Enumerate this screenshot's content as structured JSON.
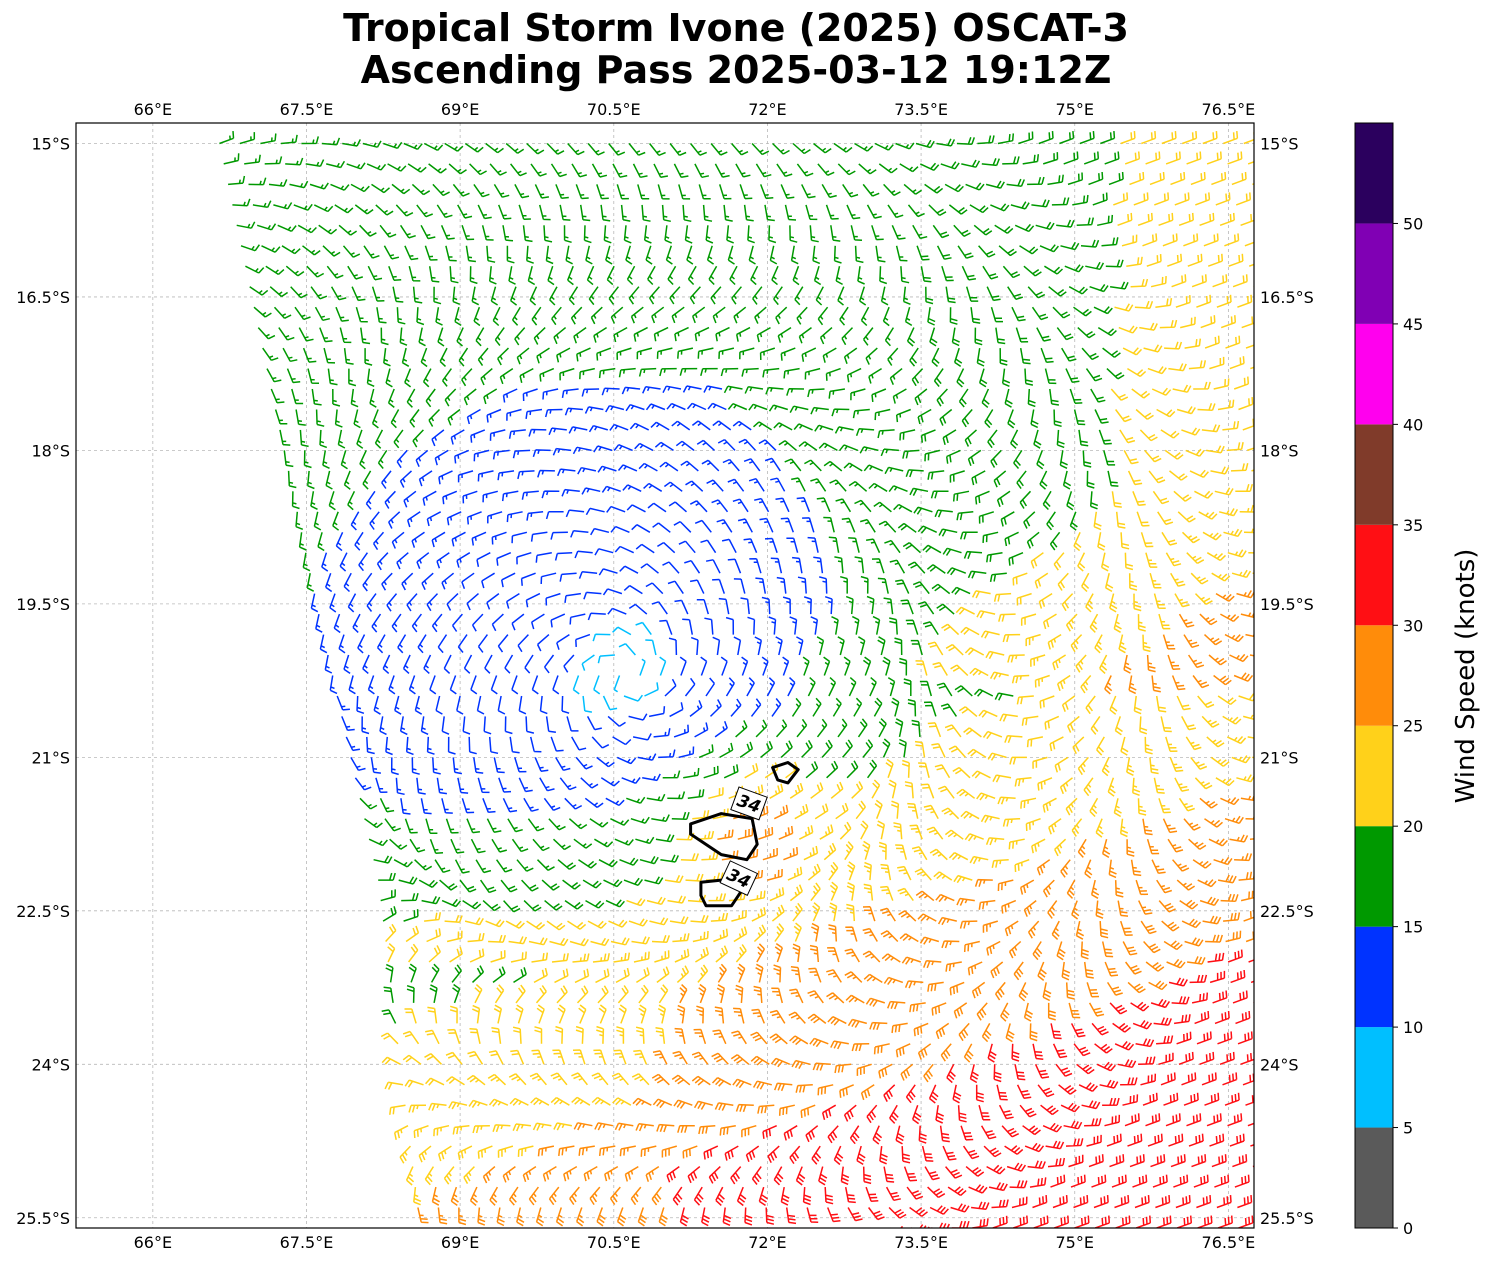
{
  "title_line1": "Tropical Storm Ivone (2025) OSCAT-3",
  "title_line2": "Ascending Pass 2025-03-12 19:12Z",
  "map": {
    "lon_range": [
      65.25,
      76.75
    ],
    "lat_range": [
      -25.6,
      -14.8
    ],
    "lon_ticks": [
      {
        "value": 66,
        "label": "66°E"
      },
      {
        "value": 67.5,
        "label": "67.5°E"
      },
      {
        "value": 69,
        "label": "69°E"
      },
      {
        "value": 70.5,
        "label": "70.5°E"
      },
      {
        "value": 72,
        "label": "72°E"
      },
      {
        "value": 73.5,
        "label": "73.5°E"
      },
      {
        "value": 75,
        "label": "75°E"
      },
      {
        "value": 76.5,
        "label": "76.5°E"
      }
    ],
    "lat_ticks": [
      {
        "value": -15,
        "label": "15°S"
      },
      {
        "value": -16.5,
        "label": "16.5°S"
      },
      {
        "value": -18,
        "label": "18°S"
      },
      {
        "value": -19.5,
        "label": "19.5°S"
      },
      {
        "value": -21,
        "label": "21°S"
      },
      {
        "value": -22.5,
        "label": "22.5°S"
      },
      {
        "value": -24,
        "label": "24°S"
      },
      {
        "value": -25.5,
        "label": "25.5°S"
      }
    ],
    "gridlines": true,
    "storm_center": {
      "lon": 70.6,
      "lat": -20.2
    },
    "swath_west_edge": [
      {
        "lat": -15.0,
        "lon": 66.65
      },
      {
        "lat": -19.5,
        "lon": 67.6
      },
      {
        "lat": -22.2,
        "lon": 68.2
      },
      {
        "lat": -25.5,
        "lon": 68.6
      }
    ],
    "contour_34kt": {
      "value_label": "34",
      "polygons": [
        [
          [
            72.05,
            -21.1
          ],
          [
            72.2,
            -21.05
          ],
          [
            72.3,
            -21.12
          ],
          [
            72.2,
            -21.25
          ],
          [
            72.1,
            -21.22
          ]
        ],
        [
          [
            71.25,
            -21.65
          ],
          [
            71.55,
            -21.55
          ],
          [
            71.85,
            -21.6
          ],
          [
            71.9,
            -21.85
          ],
          [
            71.8,
            -22.0
          ],
          [
            71.55,
            -21.95
          ],
          [
            71.25,
            -21.75
          ]
        ],
        [
          [
            71.35,
            -22.22
          ],
          [
            71.55,
            -22.2
          ],
          [
            71.75,
            -22.3
          ],
          [
            71.65,
            -22.45
          ],
          [
            71.4,
            -22.45
          ],
          [
            71.35,
            -22.35
          ]
        ]
      ],
      "label_positions": [
        {
          "lon": 71.82,
          "lat": -21.45,
          "rotation": 20
        },
        {
          "lon": 71.72,
          "lat": -22.18,
          "rotation": 25
        }
      ]
    }
  },
  "colorbar": {
    "label": "Wind Speed (knots)",
    "bins": [
      {
        "min": 0,
        "max": 5,
        "color": "#5a5a5a"
      },
      {
        "min": 5,
        "max": 10,
        "color": "#00bfff"
      },
      {
        "min": 10,
        "max": 15,
        "color": "#0033ff"
      },
      {
        "min": 15,
        "max": 20,
        "color": "#009900"
      },
      {
        "min": 20,
        "max": 25,
        "color": "#ffd11a"
      },
      {
        "min": 25,
        "max": 30,
        "color": "#ff8c0a"
      },
      {
        "min": 30,
        "max": 35,
        "color": "#ff0f14"
      },
      {
        "min": 35,
        "max": 40,
        "color": "#803b2a"
      },
      {
        "min": 40,
        "max": 45,
        "color": "#ff00ee"
      },
      {
        "min": 45,
        "max": 50,
        "color": "#8000b4"
      },
      {
        "min": 50,
        "max": 55,
        "color": "#2b005e"
      }
    ],
    "tick_labels": [
      {
        "value": 0,
        "label": "0"
      },
      {
        "value": 5,
        "label": "5"
      },
      {
        "value": 10,
        "label": "10"
      },
      {
        "value": 15,
        "label": "15"
      },
      {
        "value": 20,
        "label": "20"
      },
      {
        "value": 25,
        "label": "25"
      },
      {
        "value": 30,
        "label": "30"
      },
      {
        "value": 35,
        "label": "35"
      },
      {
        "value": 40,
        "label": "40"
      },
      {
        "value": 45,
        "label": "45"
      },
      {
        "value": 50,
        "label": "50"
      }
    ]
  }
}
